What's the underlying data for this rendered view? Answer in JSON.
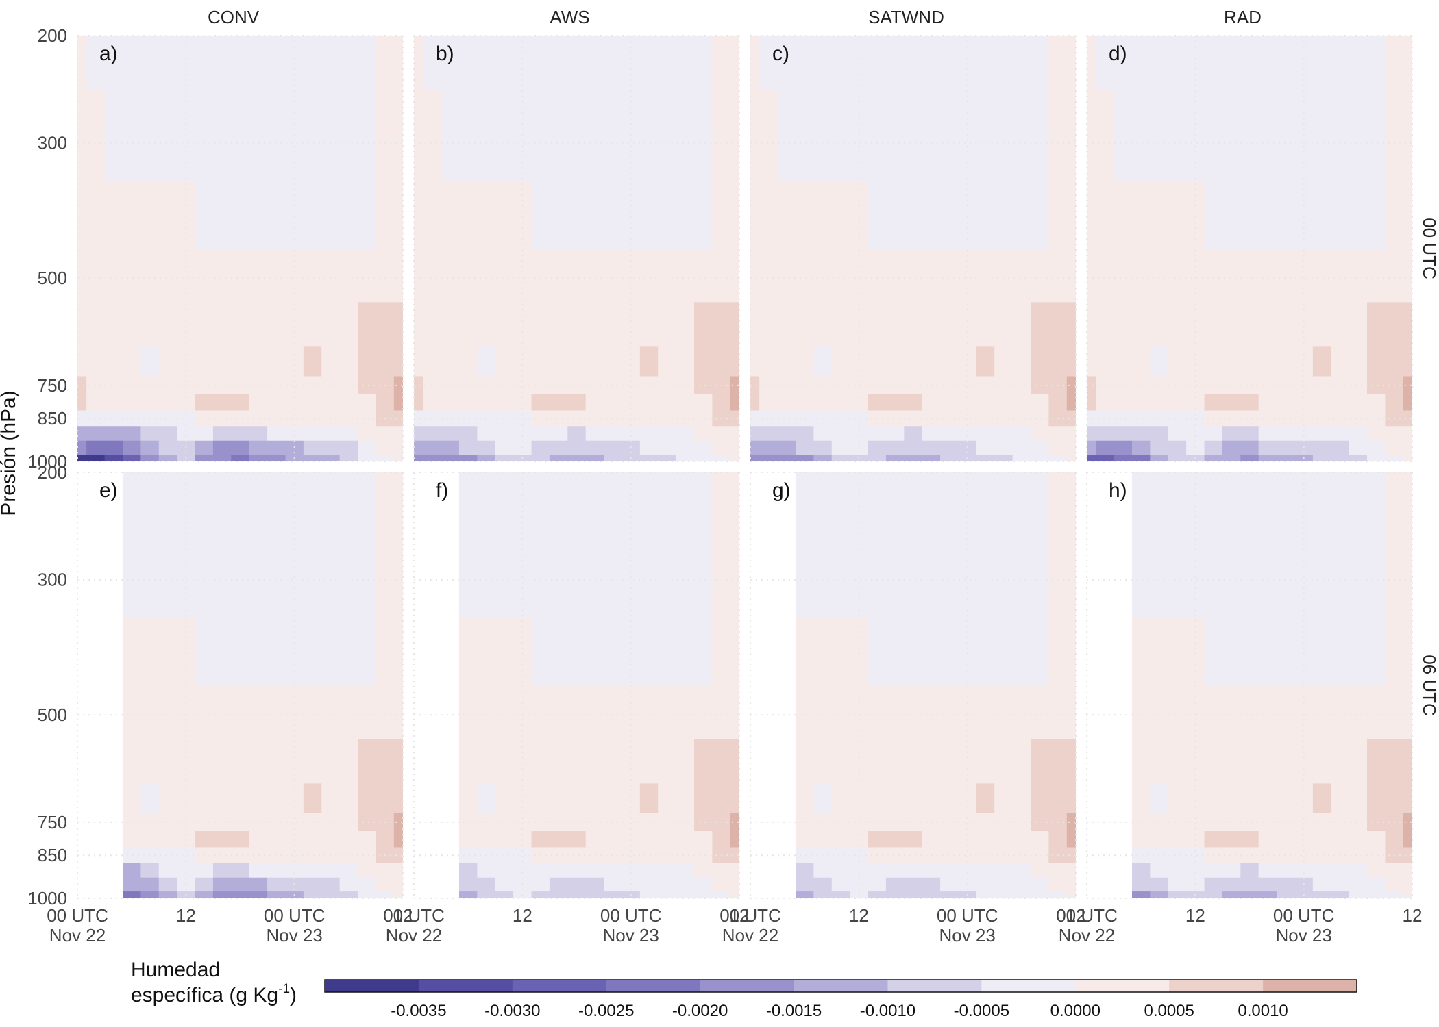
{
  "chart_data": {
    "type": "heatmap",
    "facets": {
      "columns": [
        "CONV",
        "AWS",
        "SATWND",
        "RAD"
      ],
      "rows": [
        "00 UTC",
        "06 UTC"
      ],
      "panel_labels": [
        "a)",
        "b)",
        "c)",
        "d)",
        "e)",
        "f)",
        "g)",
        "h)"
      ]
    },
    "ylabel": "Presión (hPa)",
    "y_scale": "log",
    "y_ticks": [
      200,
      300,
      500,
      750,
      850,
      1000
    ],
    "ylim": [
      1000,
      200
    ],
    "x_ticks": [
      {
        "line1": "00 UTC",
        "line2": "Nov 22",
        "t": 0
      },
      {
        "line1": "12",
        "line2": "",
        "t": 12
      },
      {
        "line1": "00 UTC",
        "line2": "Nov 23",
        "t": 24
      },
      {
        "line1": "12",
        "line2": "",
        "t": 36
      }
    ],
    "xlim_hours": [
      0,
      36
    ],
    "missing_data_end_hours": [
      0,
      5
    ],
    "legend": {
      "title_line1": "Humedad",
      "title_line2": "específica (g Kg",
      "title_sup": "-1",
      "title_close": ")",
      "tick_labels": [
        "-0.0035",
        "-0.0030",
        "-0.0025",
        "-0.0020",
        "-0.0015",
        "-0.0010",
        "-0.0005",
        "0.0000",
        "0.0005",
        "0.0010"
      ],
      "bins": [
        -0.004,
        -0.0035,
        -0.003,
        -0.0025,
        -0.002,
        -0.0015,
        -0.001,
        -0.0005,
        0.0,
        0.0005,
        0.001,
        0.0015
      ],
      "colors": [
        "#3f3a8c",
        "#554ea3",
        "#6a62b2",
        "#7f78bf",
        "#9891cc",
        "#b3add9",
        "#d4d0e8",
        "#eeedf5",
        "#f6ebe8",
        "#ecd2cb",
        "#ddb3a9"
      ]
    },
    "panel_fields": [
      {
        "id": "CONV-00",
        "x_hours": [
          0,
          2,
          4,
          6,
          8,
          10,
          12,
          14,
          16,
          18,
          20,
          22,
          24,
          26,
          28,
          30,
          32,
          34,
          36
        ],
        "p_levels": [
          200,
          300,
          400,
          500,
          600,
          700,
          750,
          800,
          850,
          900,
          950,
          1000
        ],
        "values_note": "anomaly of specific humidity, g Kg-1",
        "values": [
          [
            0.0003,
            -0.0004,
            -0.0004,
            -0.0004,
            -0.0004,
            -0.0004,
            -0.0004,
            -0.0004,
            -0.0004,
            -0.0004,
            -0.0004,
            -0.0004,
            -0.0004,
            -0.0004,
            -0.0004,
            -0.0004,
            -0.0004,
            0.0003,
            0.0003
          ],
          [
            0.0002,
            0.0002,
            -0.0004,
            -0.0004,
            -0.0004,
            -0.0004,
            -0.0004,
            -0.0004,
            -0.0004,
            -0.0004,
            -0.0004,
            -0.0004,
            -0.0004,
            -0.0004,
            -0.0004,
            -0.0004,
            -0.0004,
            0.0003,
            0.0003
          ],
          [
            0.0002,
            0.0002,
            0.0002,
            0.0002,
            0.0002,
            0.0002,
            0.0002,
            -0.0004,
            -0.0004,
            -0.0004,
            -0.0004,
            -0.0004,
            -0.0004,
            -0.0004,
            -0.0004,
            -0.0004,
            -0.0004,
            0.0003,
            0.0003
          ],
          [
            0.0002,
            0.0002,
            0.0002,
            0.0002,
            0.0002,
            0.0002,
            0.0002,
            0.0002,
            0.0002,
            0.0002,
            0.0002,
            0.0002,
            0.0002,
            0.0002,
            0.0002,
            0.0002,
            0.0002,
            0.0003,
            0.0003
          ],
          [
            0.0002,
            0.0002,
            0.0002,
            0.0002,
            0.0002,
            0.0002,
            0.0002,
            0.0002,
            0.0002,
            0.0002,
            0.0002,
            0.0002,
            0.0002,
            0.0002,
            0.0002,
            0.0002,
            0.0006,
            0.0007,
            0.0008
          ],
          [
            0.0002,
            0.0002,
            0.0002,
            0.0002,
            -0.0003,
            0.0002,
            0.0002,
            0.0002,
            0.0002,
            0.0002,
            0.0002,
            0.0002,
            0.0002,
            0.0006,
            0.0002,
            0.0002,
            0.0007,
            0.0008,
            0.0009
          ],
          [
            0.0007,
            0.0002,
            0.0002,
            0.0002,
            0.0002,
            0.0002,
            0.0002,
            0.0002,
            0.0002,
            0.0002,
            0.0002,
            0.0002,
            0.0002,
            0.0002,
            0.0002,
            0.0002,
            0.0007,
            0.0009,
            0.0012
          ],
          [
            0.0008,
            0.0002,
            0.0002,
            0.0002,
            0.0002,
            0.0002,
            0.0002,
            0.0008,
            0.0008,
            0.0007,
            0.0002,
            0.0002,
            0.0002,
            0.0002,
            0.0002,
            0.0002,
            0.0002,
            0.0009,
            0.0012
          ],
          [
            -0.0003,
            -0.0004,
            -0.0004,
            -0.0003,
            -0.0003,
            -0.0003,
            -0.0003,
            0.0002,
            0.0002,
            0.0002,
            0.0002,
            0.0002,
            0.0002,
            0.0002,
            0.0002,
            0.0002,
            0.0002,
            0.0007,
            0.0009
          ],
          [
            -0.0012,
            -0.0012,
            -0.0013,
            -0.0013,
            -0.0008,
            -0.0006,
            -0.0003,
            -0.0004,
            -0.0008,
            -0.001,
            -0.0006,
            -0.0004,
            -0.0004,
            -0.0003,
            -0.0003,
            -0.0002,
            0.0002,
            0.0002,
            0.0002
          ],
          [
            -0.002,
            -0.0022,
            -0.0022,
            -0.0018,
            -0.0013,
            -0.0008,
            -0.0006,
            -0.0012,
            -0.0016,
            -0.0016,
            -0.0013,
            -0.0012,
            -0.0011,
            -0.0009,
            -0.0008,
            -0.0006,
            -0.0003,
            0.0002,
            0.0002
          ],
          [
            -0.0036,
            -0.0036,
            -0.0035,
            -0.003,
            -0.002,
            -0.0013,
            -0.001,
            -0.0016,
            -0.002,
            -0.0022,
            -0.002,
            -0.0018,
            -0.0015,
            -0.0012,
            -0.0011,
            -0.0008,
            -0.0004,
            -0.0002,
            0.0002
          ]
        ]
      }
    ]
  }
}
